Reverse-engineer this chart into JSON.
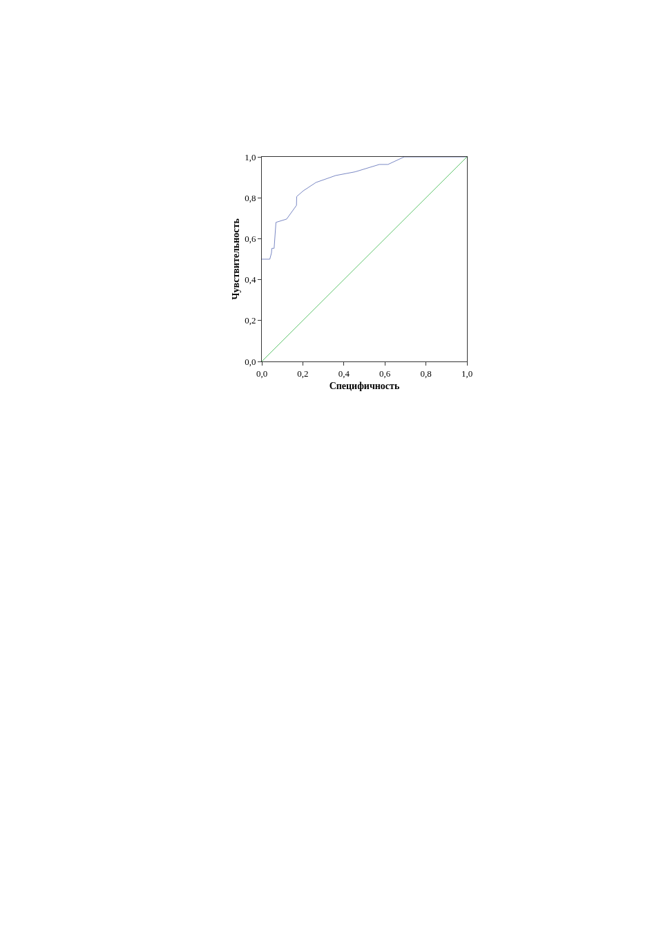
{
  "chart_data": {
    "type": "line",
    "xlabel": "Специфичность",
    "ylabel": "Чувствительность",
    "xlim": [
      0,
      1
    ],
    "ylim": [
      0,
      1
    ],
    "xticks": [
      {
        "value": 0,
        "label": "0,0"
      },
      {
        "value": 0.2,
        "label": "0,2"
      },
      {
        "value": 0.4,
        "label": "0,4"
      },
      {
        "value": 0.6,
        "label": "0,6"
      },
      {
        "value": 0.8,
        "label": "0,8"
      },
      {
        "value": 1,
        "label": "1,0"
      }
    ],
    "yticks": [
      {
        "value": 0,
        "label": "0,0"
      },
      {
        "value": 0.2,
        "label": "0,2"
      },
      {
        "value": 0.4,
        "label": "0,4"
      },
      {
        "value": 0.6,
        "label": "0,6"
      },
      {
        "value": 0.8,
        "label": "0,8"
      },
      {
        "value": 1,
        "label": "1,0"
      }
    ],
    "marker": "none",
    "line_style": "solid",
    "series": [
      {
        "color": "#7a88c4",
        "x": [
          0,
          0.039,
          0.047,
          0.049,
          0.06,
          0.069,
          0.121,
          0.169,
          0.17,
          0.202,
          0.264,
          0.36,
          0.455,
          0.573,
          0.615,
          0.694,
          1
        ],
        "values": [
          0.5,
          0.5,
          0.53,
          0.553,
          0.553,
          0.68,
          0.696,
          0.763,
          0.806,
          0.834,
          0.875,
          0.909,
          0.927,
          0.963,
          0.963,
          1,
          1
        ]
      },
      {
        "color": "#5cc46a",
        "x": [
          0,
          1
        ],
        "values": [
          0,
          1
        ]
      }
    ]
  }
}
